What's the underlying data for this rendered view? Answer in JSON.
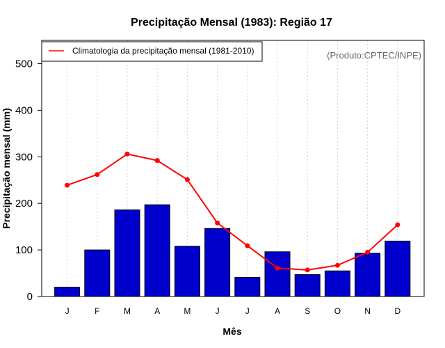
{
  "chart_data": {
    "type": "bar",
    "title": "Precipitação Mensal (1983): Região 17",
    "xlabel": "Mês",
    "ylabel": "Precipitação mensal (mm)",
    "ylim": [
      0,
      550
    ],
    "yticks": [
      0,
      100,
      200,
      300,
      400,
      500
    ],
    "categories": [
      "J",
      "F",
      "M",
      "A",
      "M",
      "J",
      "J",
      "A",
      "S",
      "O",
      "N",
      "D"
    ],
    "bar_color": "#0000cc",
    "line_color": "#ff0000",
    "grid_color": "#d3d3d3",
    "series": [
      {
        "name": "Precipitação mensal (1983)",
        "kind": "bar",
        "values": [
          20,
          100,
          186,
          197,
          108,
          146,
          41,
          96,
          47,
          55,
          93,
          119
        ]
      },
      {
        "name": "Climatologia da precipitação mensal (1981-2010)",
        "kind": "line",
        "values": [
          239,
          262,
          306,
          292,
          251,
          158,
          109,
          61,
          57,
          67,
          95,
          154
        ]
      }
    ],
    "legend": {
      "position": "top-left",
      "label": "Climatologia da precipitação mensal (1981-2010)"
    },
    "credit": "(Produto:CPTEC/INPE)"
  }
}
